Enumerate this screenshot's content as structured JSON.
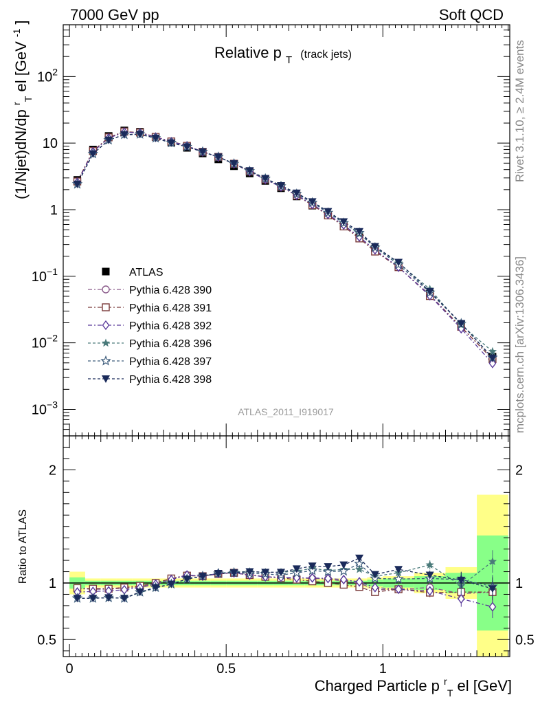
{
  "header": {
    "left": "7000 GeV pp",
    "right": "Soft QCD"
  },
  "side_labels": {
    "rivet": "Rivet 3.1.10, ≥ 2.4M events",
    "mcplots": "mcplots.cern.ch [arXiv:1306.3436]"
  },
  "watermark": "ATLAS_2011_I919017",
  "chart_data": [
    {
      "type": "scatter",
      "panel": "main",
      "title": "Relative pT (track jets)",
      "title_main": "Relative p",
      "title_sub": "T",
      "title_suffix": "(track jets)",
      "ylabel": "(1/Njet)dN/dp",
      "ylabel_sub": "T",
      "ylabel_sup": "r",
      "ylabel_mid": "el [GeV",
      "ylabel_sup2": "-1",
      "ylabel_end": "]",
      "yscale": "log",
      "ylim": [
        0.0004,
        600
      ],
      "xlim": [
        -0.02,
        1.405
      ],
      "y_ticks": [
        {
          "value": 100,
          "base": "10",
          "exp": "2"
        },
        {
          "value": 10,
          "base": "10",
          "exp": ""
        },
        {
          "value": 1,
          "base": "1",
          "exp": ""
        },
        {
          "value": 0.1,
          "base": "10",
          "exp": "−1"
        },
        {
          "value": 0.01,
          "base": "10",
          "exp": "−2"
        },
        {
          "value": 0.001,
          "base": "10",
          "exp": "−3"
        }
      ],
      "x": [
        0.025,
        0.075,
        0.125,
        0.175,
        0.225,
        0.275,
        0.325,
        0.375,
        0.425,
        0.475,
        0.525,
        0.575,
        0.625,
        0.675,
        0.725,
        0.775,
        0.825,
        0.875,
        0.925,
        0.975,
        1.05,
        1.15,
        1.25,
        1.35
      ],
      "series": [
        {
          "name": "ATLAS",
          "label": "ATLAS",
          "marker": "square-filled",
          "color": "#000000",
          "values": [
            2.8,
            8.0,
            12.8,
            15.5,
            14.8,
            12.4,
            10.2,
            8.5,
            7.0,
            5.7,
            4.5,
            3.5,
            2.7,
            2.1,
            1.58,
            1.15,
            0.82,
            0.57,
            0.385,
            0.26,
            0.145,
            0.055,
            0.019,
            0.0062
          ]
        },
        {
          "name": "Pythia 6.428 390",
          "label": "Pythia 6.428 390",
          "marker": "circle-open",
          "color": "#8a5a8a",
          "dash": "6,3,2,3",
          "values": [
            2.65,
            7.55,
            12.1,
            14.8,
            14.3,
            12.4,
            10.6,
            9.1,
            7.4,
            6.2,
            4.9,
            3.75,
            2.85,
            2.2,
            1.65,
            1.2,
            0.85,
            0.58,
            0.385,
            0.245,
            0.137,
            0.0528,
            0.0172,
            0.0057
          ]
        },
        {
          "name": "Pythia 6.428 391",
          "label": "Pythia 6.428 391",
          "marker": "square-open",
          "color": "#7a3a3a",
          "dash": "6,3,2,3",
          "values": [
            2.65,
            7.6,
            12.2,
            14.9,
            14.4,
            12.4,
            10.6,
            9.1,
            7.4,
            6.2,
            4.9,
            3.75,
            2.85,
            2.2,
            1.63,
            1.17,
            0.82,
            0.56,
            0.37,
            0.235,
            0.137,
            0.0505,
            0.0174,
            0.0057
          ]
        },
        {
          "name": "Pythia 6.428 392",
          "label": "Pythia 6.428 392",
          "marker": "diamond-open",
          "color": "#5a3a9a",
          "dash": "6,3,2,3",
          "values": [
            2.58,
            7.4,
            11.9,
            14.6,
            14.2,
            12.3,
            10.5,
            9.1,
            7.4,
            6.2,
            4.9,
            3.75,
            2.85,
            2.2,
            1.65,
            1.2,
            0.85,
            0.59,
            0.39,
            0.25,
            0.137,
            0.051,
            0.0163,
            0.0049
          ]
        },
        {
          "name": "Pythia 6.428 396",
          "label": "Pythia 6.428 396",
          "marker": "star-filled",
          "color": "#4a7a7a",
          "dash": "4,3",
          "values": [
            2.42,
            6.9,
            11.1,
            13.4,
            13.5,
            11.8,
            10.1,
            8.8,
            7.4,
            6.2,
            4.95,
            3.85,
            2.95,
            2.3,
            1.75,
            1.3,
            0.91,
            0.64,
            0.43,
            0.275,
            0.158,
            0.064,
            0.0185,
            0.0074
          ]
        },
        {
          "name": "Pythia 6.428 397",
          "label": "Pythia 6.428 397",
          "marker": "star-open",
          "color": "#3a5a7a",
          "dash": "4,3",
          "values": [
            2.42,
            6.9,
            11.1,
            13.4,
            13.6,
            11.9,
            10.1,
            8.8,
            7.4,
            6.2,
            4.9,
            3.8,
            2.92,
            2.25,
            1.72,
            1.28,
            0.9,
            0.63,
            0.45,
            0.27,
            0.15,
            0.057,
            0.0195,
            0.006
          ]
        },
        {
          "name": "Pythia 6.428 398",
          "label": "Pythia 6.428 398",
          "marker": "triangle-down-filled",
          "color": "#1a2a5a",
          "dash": "4,3",
          "values": [
            2.42,
            6.9,
            11.1,
            13.4,
            13.6,
            11.9,
            10.1,
            8.8,
            7.4,
            6.2,
            4.9,
            3.85,
            2.95,
            2.3,
            1.78,
            1.32,
            0.94,
            0.66,
            0.47,
            0.28,
            0.162,
            0.059,
            0.0195,
            0.0059
          ]
        }
      ]
    },
    {
      "type": "scatter",
      "panel": "ratio",
      "ylabel": "Ratio to ATLAS",
      "ylim": [
        0.35,
        2.3
      ],
      "xlim": [
        -0.02,
        1.405
      ],
      "y_ticks": [
        {
          "value": 2,
          "label": "2"
        },
        {
          "value": 1,
          "label": "1"
        },
        {
          "value": 0.5,
          "label": "0.5"
        }
      ],
      "x_ticks": [
        {
          "value": 0,
          "label": "0"
        },
        {
          "value": 0.5,
          "label": "0.5"
        },
        {
          "value": 1,
          "label": "1"
        }
      ],
      "xlabel": "Charged Particle p",
      "xlabel_sup": "r",
      "xlabel_sub": "T",
      "xlabel_end": "el [GeV]",
      "bin_edges": [
        0.0,
        0.05,
        0.1,
        0.15,
        0.2,
        0.25,
        0.3,
        0.35,
        0.4,
        0.45,
        0.5,
        0.55,
        0.6,
        0.65,
        0.7,
        0.75,
        0.8,
        0.85,
        0.9,
        0.95,
        1.0,
        1.1,
        1.2,
        1.3,
        1.4
      ],
      "band_yellow": [
        0.1,
        0.04,
        0.04,
        0.04,
        0.04,
        0.04,
        0.04,
        0.04,
        0.04,
        0.04,
        0.04,
        0.04,
        0.04,
        0.04,
        0.04,
        0.04,
        0.04,
        0.04,
        0.04,
        0.05,
        0.06,
        0.09,
        0.14,
        0.78
      ],
      "band_green": [
        0.05,
        0.02,
        0.02,
        0.02,
        0.02,
        0.02,
        0.02,
        0.02,
        0.02,
        0.02,
        0.02,
        0.02,
        0.02,
        0.02,
        0.02,
        0.02,
        0.02,
        0.02,
        0.02,
        0.03,
        0.04,
        0.06,
        0.09,
        0.42
      ],
      "series": [
        {
          "name": "Pythia 6.428 390",
          "marker": "circle-open",
          "color": "#8a5a8a",
          "dash": "6,3,2,3",
          "values": [
            0.95,
            0.945,
            0.945,
            0.955,
            0.965,
            1.0,
            1.04,
            1.07,
            1.06,
            1.08,
            1.09,
            1.07,
            1.055,
            1.05,
            1.045,
            1.04,
            1.035,
            1.015,
            1.0,
            0.94,
            0.945,
            0.96,
            0.905,
            0.92
          ]
        },
        {
          "name": "Pythia 6.428 391",
          "marker": "square-open",
          "color": "#7a3a3a",
          "dash": "6,3,2,3",
          "values": [
            0.955,
            0.95,
            0.95,
            0.96,
            0.975,
            1.0,
            1.04,
            1.065,
            1.06,
            1.08,
            1.09,
            1.07,
            1.055,
            1.045,
            1.03,
            1.015,
            1.0,
            0.985,
            0.965,
            0.92,
            0.945,
            0.915,
            0.92,
            0.92
          ]
        },
        {
          "name": "Pythia 6.428 392",
          "marker": "diamond-open",
          "color": "#5a3a9a",
          "dash": "6,3,2,3",
          "values": [
            0.92,
            0.925,
            0.93,
            0.94,
            0.96,
            0.99,
            1.03,
            1.07,
            1.06,
            1.085,
            1.09,
            1.07,
            1.055,
            1.05,
            1.045,
            1.045,
            1.04,
            1.03,
            1.01,
            0.96,
            0.945,
            0.93,
            0.86,
            0.79
          ]
        },
        {
          "name": "Pythia 6.428 396",
          "marker": "star-filled",
          "color": "#4a7a7a",
          "dash": "4,3",
          "values": [
            0.865,
            0.865,
            0.87,
            0.865,
            0.915,
            0.955,
            0.99,
            1.035,
            1.06,
            1.085,
            1.1,
            1.1,
            1.095,
            1.095,
            1.105,
            1.13,
            1.11,
            1.12,
            1.12,
            1.06,
            1.09,
            1.16,
            0.975,
            1.19
          ]
        },
        {
          "name": "Pythia 6.428 397",
          "marker": "star-open",
          "color": "#3a5a7a",
          "dash": "4,3",
          "values": [
            0.865,
            0.865,
            0.87,
            0.865,
            0.92,
            0.96,
            0.99,
            1.035,
            1.06,
            1.085,
            1.09,
            1.085,
            1.08,
            1.07,
            1.09,
            1.11,
            1.1,
            1.105,
            1.17,
            1.04,
            1.035,
            1.04,
            1.03,
            0.97
          ]
        },
        {
          "name": "Pythia 6.428 398",
          "marker": "triangle-down-filled",
          "color": "#1a2a5a",
          "dash": "4,3",
          "values": [
            0.865,
            0.865,
            0.87,
            0.865,
            0.92,
            0.96,
            0.99,
            1.035,
            1.06,
            1.085,
            1.09,
            1.1,
            1.095,
            1.095,
            1.125,
            1.15,
            1.145,
            1.16,
            1.22,
            1.075,
            1.12,
            1.07,
            1.025,
            0.95
          ]
        }
      ]
    }
  ]
}
